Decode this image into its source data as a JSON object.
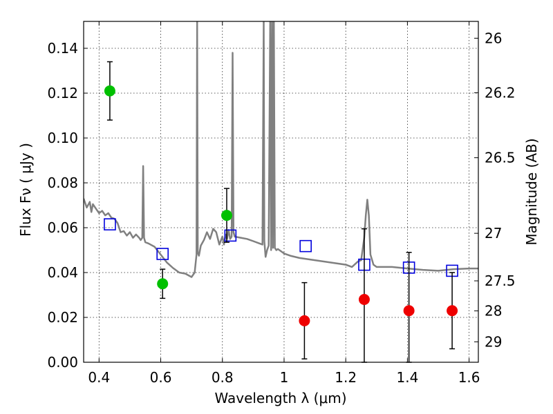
{
  "chart_data": {
    "type": "scatter",
    "xlabel": "Wavelength  λ (μm)",
    "ylabel": "Flux  Fν  ( μJy )",
    "ylabel_right": "Magnitude (AB)",
    "xlim": [
      0.35,
      1.63
    ],
    "ylim": [
      0.0,
      0.152
    ],
    "grid": true,
    "x_ticks": [
      0.4,
      0.6,
      0.8,
      1.0,
      1.2,
      1.4,
      1.6
    ],
    "x_tick_labels": [
      "0.4",
      "0.6",
      "0.8",
      "1",
      "1.2",
      "1.4",
      "1.6"
    ],
    "y_ticks": [
      0.0,
      0.02,
      0.04,
      0.06,
      0.08,
      0.1,
      0.12,
      0.14
    ],
    "y_tick_labels": [
      "0.00",
      "0.02",
      "0.04",
      "0.06",
      "0.08",
      "0.10",
      "0.12",
      "0.14"
    ],
    "right_ticks": [
      {
        "label": "26",
        "flux": 0.1445
      },
      {
        "label": "26.2",
        "flux": 0.1202
      },
      {
        "label": "26.5",
        "flux": 0.0912
      },
      {
        "label": "27",
        "flux": 0.0575
      },
      {
        "label": "27.5",
        "flux": 0.0363
      },
      {
        "label": "28",
        "flux": 0.0229
      },
      {
        "label": "29",
        "flux": 0.0091
      }
    ],
    "series": [
      {
        "kind": "points-with-errors",
        "color": "#00c000",
        "points": [
          {
            "x": 0.435,
            "y": 0.121,
            "err": 0.013
          },
          {
            "x": 0.606,
            "y": 0.035,
            "err": 0.0065
          },
          {
            "x": 0.814,
            "y": 0.0655,
            "err": 0.012
          }
        ]
      },
      {
        "kind": "points-with-errors",
        "color": "#ee0000",
        "points": [
          {
            "x": 1.066,
            "y": 0.0185,
            "err": 0.017
          },
          {
            "x": 1.26,
            "y": 0.028,
            "err": 0.0315
          },
          {
            "x": 1.405,
            "y": 0.023,
            "err": 0.026
          },
          {
            "x": 1.545,
            "y": 0.023,
            "err": 0.017
          }
        ]
      },
      {
        "kind": "model-squares",
        "color": "#0000dd",
        "points": [
          {
            "x": 0.435,
            "y": 0.0615
          },
          {
            "x": 0.606,
            "y": 0.0483
          },
          {
            "x": 0.826,
            "y": 0.0565
          },
          {
            "x": 1.07,
            "y": 0.0518
          },
          {
            "x": 1.26,
            "y": 0.0435
          },
          {
            "x": 1.405,
            "y": 0.0422
          },
          {
            "x": 1.545,
            "y": 0.0408
          }
        ]
      },
      {
        "kind": "spectrum-line",
        "color": "#808080",
        "x": [
          0.35,
          0.36,
          0.37,
          0.375,
          0.38,
          0.39,
          0.4,
          0.41,
          0.42,
          0.43,
          0.44,
          0.45,
          0.46,
          0.47,
          0.48,
          0.49,
          0.5,
          0.51,
          0.52,
          0.53,
          0.535,
          0.54,
          0.543,
          0.546,
          0.55,
          0.56,
          0.58,
          0.6,
          0.62,
          0.64,
          0.66,
          0.68,
          0.7,
          0.71,
          0.716,
          0.718,
          0.72,
          0.724,
          0.73,
          0.74,
          0.75,
          0.76,
          0.77,
          0.78,
          0.79,
          0.8,
          0.805,
          0.81,
          0.815,
          0.82,
          0.825,
          0.83,
          0.833,
          0.836,
          0.84,
          0.86,
          0.88,
          0.9,
          0.92,
          0.93,
          0.934,
          0.936,
          0.94,
          0.945,
          0.95,
          0.955,
          0.958,
          0.961,
          0.964,
          0.967,
          0.97,
          0.975,
          0.98,
          1.0,
          1.02,
          1.05,
          1.1,
          1.15,
          1.2,
          1.22,
          1.24,
          1.25,
          1.26,
          1.265,
          1.27,
          1.275,
          1.28,
          1.29,
          1.3,
          1.35,
          1.4,
          1.45,
          1.5,
          1.55,
          1.6,
          1.63
        ],
        "y": [
          0.073,
          0.069,
          0.0715,
          0.067,
          0.0705,
          0.0685,
          0.0665,
          0.0675,
          0.0655,
          0.0665,
          0.0645,
          0.064,
          0.062,
          0.058,
          0.0585,
          0.0565,
          0.058,
          0.0555,
          0.057,
          0.0555,
          0.0545,
          0.0555,
          0.0875,
          0.0555,
          0.0535,
          0.053,
          0.0515,
          0.048,
          0.0445,
          0.042,
          0.04,
          0.0395,
          0.038,
          0.04,
          0.048,
          0.152,
          0.049,
          0.0475,
          0.052,
          0.0545,
          0.058,
          0.055,
          0.0595,
          0.058,
          0.0525,
          0.056,
          0.0525,
          0.057,
          0.055,
          0.059,
          0.055,
          0.056,
          0.138,
          0.058,
          0.056,
          0.0555,
          0.055,
          0.054,
          0.053,
          0.0525,
          0.152,
          0.054,
          0.047,
          0.05,
          0.052,
          0.152,
          0.05,
          0.152,
          0.051,
          0.152,
          0.051,
          0.05,
          0.0505,
          0.0485,
          0.0475,
          0.0465,
          0.0455,
          0.0445,
          0.0435,
          0.0425,
          0.045,
          0.0455,
          0.0555,
          0.0655,
          0.0725,
          0.0655,
          0.048,
          0.0435,
          0.0425,
          0.0425,
          0.0418,
          0.0412,
          0.0408,
          0.0415,
          0.0418,
          0.0418
        ]
      }
    ]
  }
}
